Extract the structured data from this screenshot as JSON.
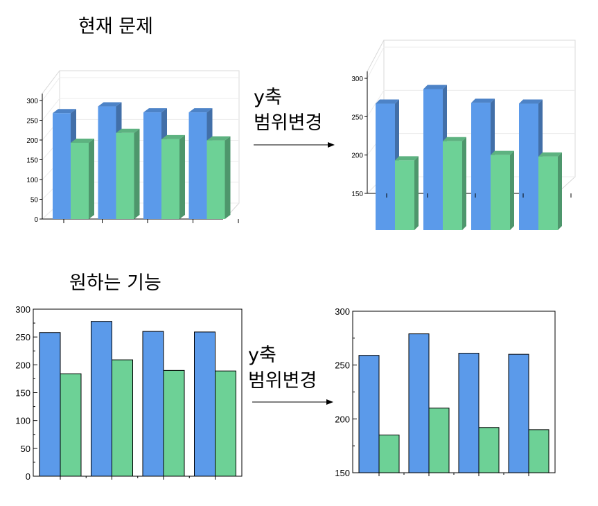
{
  "headings": {
    "current_problem": "현재 문제",
    "desired_feature": "원하는 기능"
  },
  "arrow_label": {
    "line1": "y축",
    "line2": "범위변경"
  },
  "colors": {
    "blue": "#5b9aea",
    "green": "#6dd196"
  },
  "chart_data": [
    {
      "id": "top-left",
      "type": "bar",
      "style": "3d",
      "ylim": [
        0,
        300
      ],
      "yticks": [
        0,
        50,
        100,
        150,
        200,
        250,
        300
      ],
      "series": [
        {
          "values": [
            268,
            285,
            270,
            270
          ]
        },
        {
          "values": [
            193,
            218,
            202,
            199
          ]
        }
      ]
    },
    {
      "id": "top-right",
      "type": "bar",
      "style": "3d",
      "ylim": [
        150,
        300
      ],
      "yticks": [
        150,
        200,
        250,
        300
      ],
      "series": [
        {
          "values": [
            267,
            286,
            268,
            267
          ]
        },
        {
          "values": [
            193,
            218,
            200,
            198
          ]
        }
      ]
    },
    {
      "id": "bottom-left",
      "type": "bar",
      "style": "2d",
      "ylim": [
        0,
        300
      ],
      "yticks": [
        0,
        50,
        100,
        150,
        200,
        250,
        300
      ],
      "series": [
        {
          "values": [
            258,
            278,
            260,
            259
          ]
        },
        {
          "values": [
            184,
            209,
            190,
            189
          ]
        }
      ]
    },
    {
      "id": "bottom-right",
      "type": "bar",
      "style": "2d",
      "ylim": [
        150,
        300
      ],
      "yticks": [
        150,
        200,
        250,
        300
      ],
      "series": [
        {
          "values": [
            259,
            279,
            261,
            260
          ]
        },
        {
          "values": [
            185,
            210,
            192,
            190
          ]
        }
      ]
    }
  ]
}
